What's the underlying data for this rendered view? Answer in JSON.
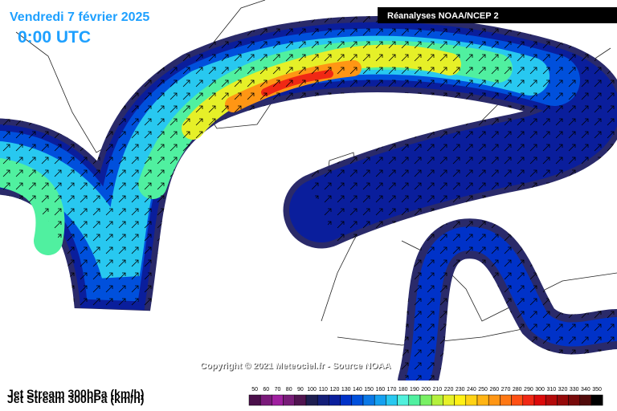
{
  "header": {
    "date": "Vendredi 7 février 2025",
    "time": "0:00 UTC",
    "source": "Réanalyses NOAA/NCEP 2"
  },
  "copyright": "Copyright © 2021 Meteociel.fr - Source NOAA",
  "legend": {
    "title": "Jet Stream 300hPa (km/h)",
    "items": [
      {
        "value": 50,
        "color": "#4a0f4a"
      },
      {
        "value": 60,
        "color": "#7a1a7a"
      },
      {
        "value": 70,
        "color": "#a020a0"
      },
      {
        "value": 80,
        "color": "#781c78"
      },
      {
        "value": 90,
        "color": "#501450"
      },
      {
        "value": 100,
        "color": "#1e1e50"
      },
      {
        "value": 110,
        "color": "#141e78"
      },
      {
        "value": 120,
        "color": "#0a1e9c"
      },
      {
        "value": 130,
        "color": "#0032c8"
      },
      {
        "value": 140,
        "color": "#0050dc"
      },
      {
        "value": 150,
        "color": "#0a78e6"
      },
      {
        "value": 160,
        "color": "#14a0f0"
      },
      {
        "value": 170,
        "color": "#28c8f0"
      },
      {
        "value": 180,
        "color": "#50f0dc"
      },
      {
        "value": 190,
        "color": "#50f0a0"
      },
      {
        "value": 200,
        "color": "#78f064"
      },
      {
        "value": 210,
        "color": "#b4f03c"
      },
      {
        "value": 220,
        "color": "#e6f028"
      },
      {
        "value": 230,
        "color": "#fff014"
      },
      {
        "value": 240,
        "color": "#ffd214"
      },
      {
        "value": 250,
        "color": "#ffb414"
      },
      {
        "value": 260,
        "color": "#ff9614"
      },
      {
        "value": 270,
        "color": "#ff7814"
      },
      {
        "value": 280,
        "color": "#ff5014"
      },
      {
        "value": 290,
        "color": "#f02814"
      },
      {
        "value": 300,
        "color": "#dc0a0a"
      },
      {
        "value": 310,
        "color": "#b40a0a"
      },
      {
        "value": 320,
        "color": "#960a0a"
      },
      {
        "value": 330,
        "color": "#780a0a"
      },
      {
        "value": 340,
        "color": "#500a0a"
      },
      {
        "value": 350,
        "color": "#000000"
      }
    ]
  }
}
